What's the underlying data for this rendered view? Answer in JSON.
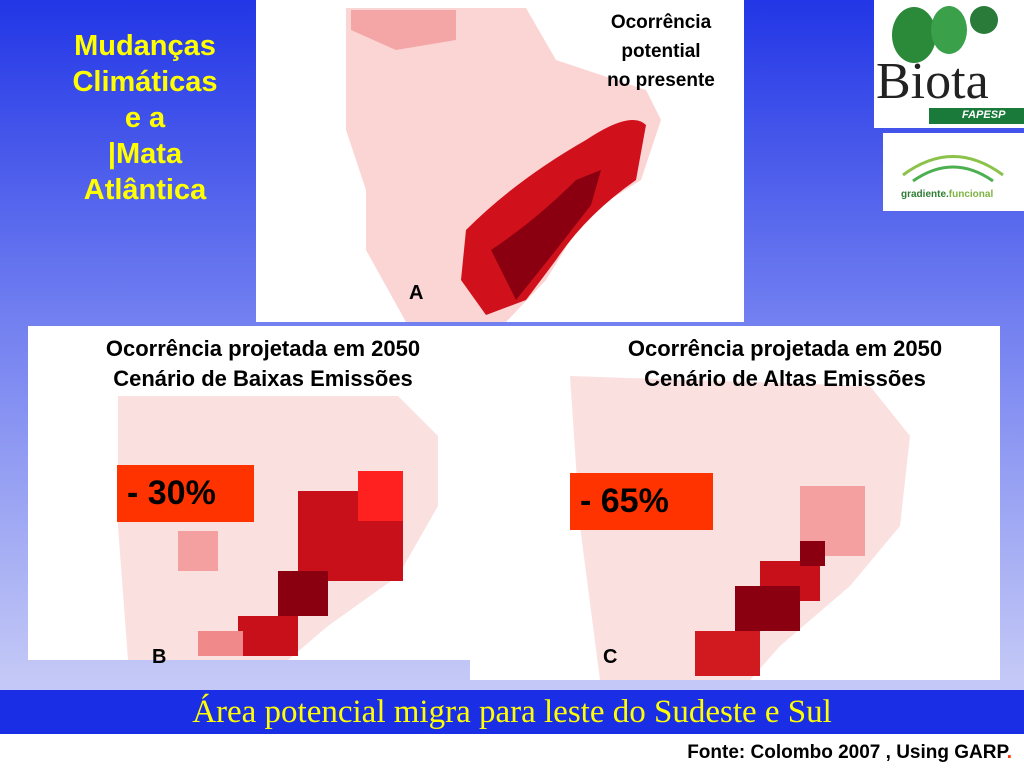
{
  "title": {
    "lines": [
      "Mudanças",
      "Climáticas",
      "e a",
      "|Mata",
      "Atlântica"
    ]
  },
  "logos": {
    "biota": "Biota",
    "fapesp": "FAPESP",
    "gradiente": "gradiente.",
    "funcional": "funcional"
  },
  "map_a": {
    "caption": [
      "Ocorrência",
      "potential",
      "no presente"
    ],
    "label": "A"
  },
  "map_b": {
    "caption": [
      "Ocorrência projetada em 2050",
      "Cenário de Baixas Emissões"
    ],
    "change": "- 30%",
    "label": "B"
  },
  "map_c": {
    "caption": [
      "Ocorrência projetada em 2050",
      "Cenário de Altas Emissões"
    ],
    "change": "- 65%",
    "label": "C"
  },
  "banner": "Área potencial migra para leste do Sudeste e Sul",
  "source": {
    "text": "Fonte: Colombo 2007 , Using GARP",
    "dot": "."
  }
}
